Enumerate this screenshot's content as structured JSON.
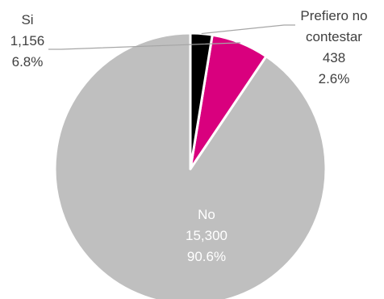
{
  "chart_data": {
    "type": "pie",
    "title": "",
    "slices": [
      {
        "label": "No",
        "count": "15,300",
        "percent": "90.6%",
        "value": 15300,
        "color": "#bfbfbf",
        "label_color": "#ffffff"
      },
      {
        "label": "Si",
        "count": "1,156",
        "percent": "6.8%",
        "value": 1156,
        "color": "#d9007e",
        "label_color": "#404040"
      },
      {
        "label": "Prefiero no contestar",
        "label_lines": [
          "Prefiero no",
          "contestar"
        ],
        "count": "438",
        "percent": "2.6%",
        "value": 438,
        "color": "#000000",
        "label_color": "#404040"
      }
    ],
    "start": "12 o'clock",
    "direction": "counter-clockwise",
    "slice_border_color": "#ffffff",
    "leader_line_color": "#a6a6a6"
  }
}
